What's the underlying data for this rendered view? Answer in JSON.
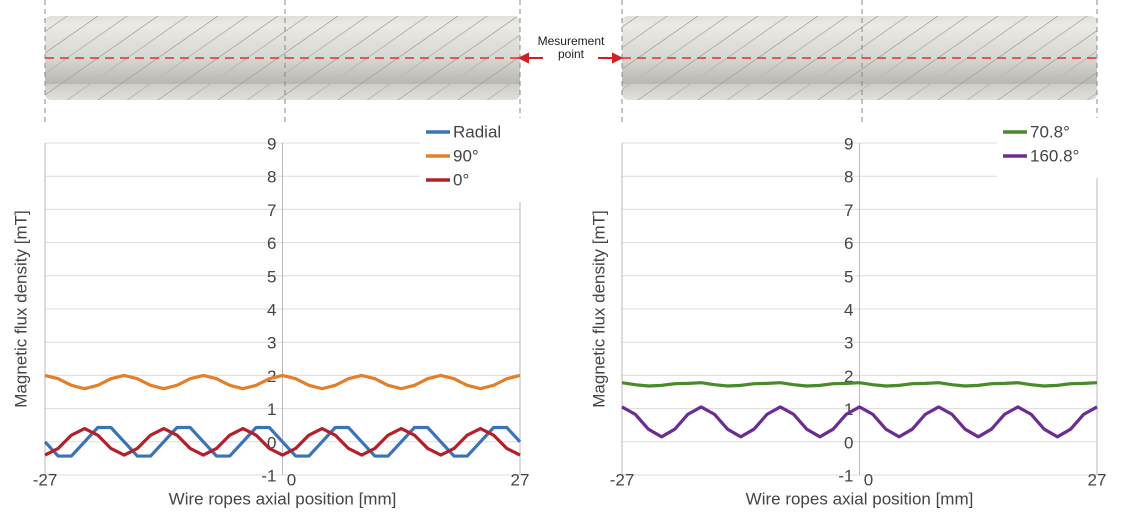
{
  "chart_data": [
    {
      "type": "line",
      "xlabel": "Wire ropes axial position [mm]",
      "ylabel": "Magnetic flux density [mT]",
      "annotations": [
        "Mesurement",
        "point"
      ],
      "x": [
        -27,
        -25.5,
        -24,
        -22.5,
        -21,
        -19.5,
        -18,
        -16.5,
        -15,
        -13.5,
        -12,
        -10.5,
        -9,
        -7.5,
        -6,
        -4.5,
        -3,
        -1.5,
        0,
        1.5,
        3,
        4.5,
        6,
        7.5,
        9,
        10.5,
        12,
        13.5,
        15,
        16.5,
        18,
        19.5,
        21,
        22.5,
        24,
        25.5,
        27
      ],
      "xlim": [
        -27,
        27
      ],
      "xticks": [
        -27,
        0,
        27
      ],
      "ylim": [
        -1,
        9
      ],
      "yticks": [
        -1,
        0,
        1,
        2,
        3,
        4,
        5,
        6,
        7,
        8,
        9
      ],
      "grid": true,
      "legend": "top-right",
      "series": [
        {
          "name": "Radial",
          "color": "#3a73b8",
          "values": [
            0,
            -0.43,
            -0.43,
            0,
            0.43,
            0.43,
            0,
            -0.43,
            -0.43,
            0,
            0.43,
            0.43,
            0,
            -0.43,
            -0.43,
            0,
            0.43,
            0.43,
            0,
            -0.43,
            -0.43,
            0,
            0.43,
            0.43,
            0,
            -0.43,
            -0.43,
            0,
            0.43,
            0.43,
            0,
            -0.43,
            -0.43,
            0,
            0.43,
            0.43,
            0
          ]
        },
        {
          "name": "90°",
          "color": "#e37f2b",
          "values": [
            2.0,
            1.9,
            1.7,
            1.6,
            1.7,
            1.9,
            2.0,
            1.9,
            1.7,
            1.6,
            1.7,
            1.9,
            2.0,
            1.9,
            1.7,
            1.6,
            1.7,
            1.9,
            2.0,
            1.9,
            1.7,
            1.6,
            1.7,
            1.9,
            2.0,
            1.9,
            1.7,
            1.6,
            1.7,
            1.9,
            2.0,
            1.9,
            1.7,
            1.6,
            1.7,
            1.9,
            2.0
          ]
        },
        {
          "name": "0°",
          "color": "#b3202a",
          "values": [
            -0.4,
            -0.2,
            0.2,
            0.4,
            0.2,
            -0.2,
            -0.4,
            -0.2,
            0.2,
            0.4,
            0.2,
            -0.2,
            -0.4,
            -0.2,
            0.2,
            0.4,
            0.2,
            -0.2,
            -0.4,
            -0.2,
            0.2,
            0.4,
            0.2,
            -0.2,
            -0.4,
            -0.2,
            0.2,
            0.4,
            0.2,
            -0.2,
            -0.4,
            -0.2,
            0.2,
            0.4,
            0.2,
            -0.2,
            -0.4
          ]
        }
      ]
    },
    {
      "type": "line",
      "xlabel": "Wire ropes axial position [mm]",
      "ylabel": "Magnetic flux density [mT]",
      "x": [
        -27,
        -25.5,
        -24,
        -22.5,
        -21,
        -19.5,
        -18,
        -16.5,
        -15,
        -13.5,
        -12,
        -10.5,
        -9,
        -7.5,
        -6,
        -4.5,
        -3,
        -1.5,
        0,
        1.5,
        3,
        4.5,
        6,
        7.5,
        9,
        10.5,
        12,
        13.5,
        15,
        16.5,
        18,
        19.5,
        21,
        22.5,
        24,
        25.5,
        27
      ],
      "xlim": [
        -27,
        27
      ],
      "xticks": [
        -27,
        0,
        27
      ],
      "ylim": [
        -1,
        9
      ],
      "yticks": [
        -1,
        0,
        1,
        2,
        3,
        4,
        5,
        6,
        7,
        8,
        9
      ],
      "grid": true,
      "legend": "top-right",
      "series": [
        {
          "name": "70.8°",
          "color": "#4a8a2a",
          "values": [
            1.78,
            1.72,
            1.68,
            1.7,
            1.75,
            1.76,
            1.78,
            1.72,
            1.68,
            1.7,
            1.75,
            1.76,
            1.78,
            1.72,
            1.68,
            1.7,
            1.75,
            1.76,
            1.78,
            1.72,
            1.68,
            1.7,
            1.75,
            1.76,
            1.78,
            1.72,
            1.68,
            1.7,
            1.75,
            1.76,
            1.78,
            1.72,
            1.68,
            1.7,
            1.75,
            1.76,
            1.78
          ]
        },
        {
          "name": "160.8°",
          "color": "#6b2d91",
          "values": [
            1.05,
            0.83,
            0.38,
            0.15,
            0.38,
            0.83,
            1.05,
            0.83,
            0.38,
            0.15,
            0.38,
            0.83,
            1.05,
            0.83,
            0.38,
            0.15,
            0.38,
            0.83,
            1.05,
            0.83,
            0.38,
            0.15,
            0.38,
            0.83,
            1.05,
            0.83,
            0.38,
            0.15,
            0.38,
            0.83,
            1.05,
            0.83,
            0.38,
            0.15,
            0.38,
            0.83,
            1.05
          ]
        }
      ]
    }
  ]
}
